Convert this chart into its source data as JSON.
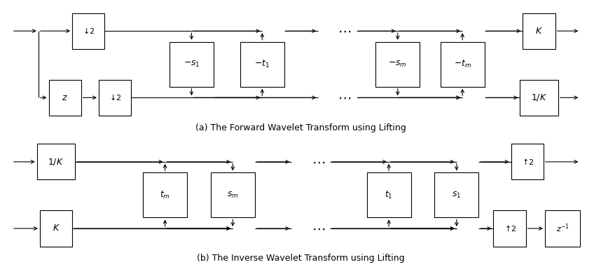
{
  "fig_width": 8.58,
  "fig_height": 3.81,
  "dpi": 100,
  "bg_color": "#ffffff",
  "caption_a": "(a) The Forward Wavelet Transform using Lifting",
  "caption_b": "(b) The Inverse Wavelet Transform using Lifting",
  "font_size_box": 9,
  "font_size_caption": 9
}
